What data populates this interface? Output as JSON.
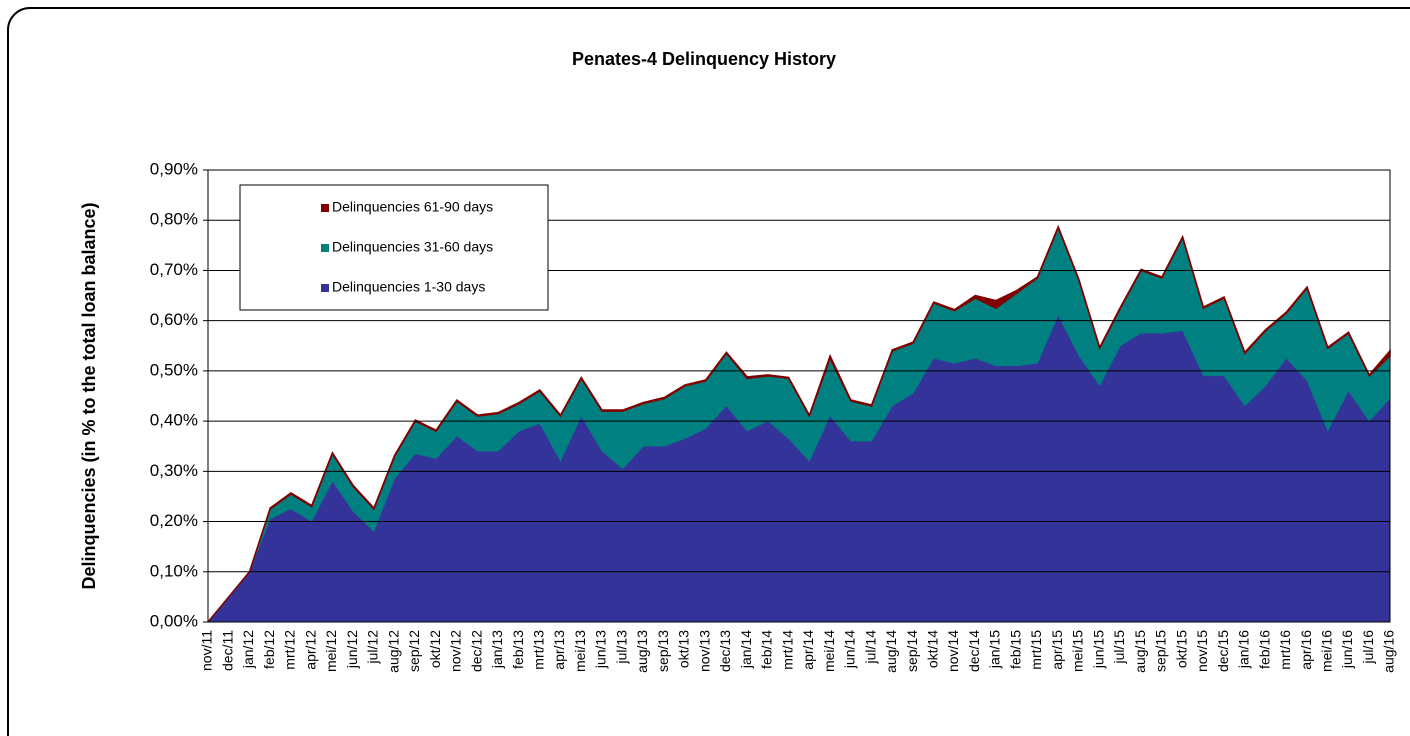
{
  "chart_data": {
    "type": "area",
    "stacked": true,
    "title": "Penates-4 Delinquency History",
    "y_label": "Delinquencies (in % to the total loan balance)",
    "categories": [
      "nov/11",
      "dec/11",
      "jan/12",
      "feb/12",
      "mrt/12",
      "apr/12",
      "mei/12",
      "jun/12",
      "jul/12",
      "aug/12",
      "sep/12",
      "okt/12",
      "nov/12",
      "dec/12",
      "jan/13",
      "feb/13",
      "mrt/13",
      "apr/13",
      "mei/13",
      "jun/13",
      "jul/13",
      "aug/13",
      "sep/13",
      "okt/13",
      "nov/13",
      "dec/13",
      "jan/14",
      "feb/14",
      "mrt/14",
      "apr/14",
      "mei/14",
      "jun/14",
      "jul/14",
      "aug/14",
      "sep/14",
      "okt/14",
      "nov/14",
      "dec/14",
      "jan/15",
      "feb/15",
      "mrt/15",
      "apr/15",
      "mei/15",
      "jun/15",
      "jul/15",
      "aug/15",
      "sep/15",
      "okt/15",
      "nov/15",
      "dec/15",
      "jan/16",
      "feb/16",
      "mrt/16",
      "apr/16",
      "mei/16",
      "jun/16",
      "jul/16",
      "aug/16"
    ],
    "series": [
      {
        "name": "Delinquencies 1-30 days",
        "color": "#333399",
        "values": [
          0,
          0.05,
          0.1,
          0.205,
          0.225,
          0.2,
          0.28,
          0.22,
          0.18,
          0.285,
          0.335,
          0.325,
          0.37,
          0.34,
          0.34,
          0.38,
          0.395,
          0.32,
          0.41,
          0.34,
          0.305,
          0.35,
          0.35,
          0.365,
          0.385,
          0.43,
          0.38,
          0.4,
          0.365,
          0.32,
          0.41,
          0.36,
          0.36,
          0.43,
          0.455,
          0.525,
          0.515,
          0.525,
          0.51,
          0.51,
          0.515,
          0.61,
          0.53,
          0.47,
          0.55,
          0.575,
          0.575,
          0.58,
          0.49,
          0.49,
          0.43,
          0.47,
          0.525,
          0.48,
          0.38,
          0.46,
          0.4,
          0.445
        ]
      },
      {
        "name": "Delinquencies 31-60 days",
        "color": "#008080",
        "values": [
          0,
          0,
          0,
          0.02,
          0.03,
          0.03,
          0.055,
          0.05,
          0.045,
          0.045,
          0.065,
          0.055,
          0.07,
          0.07,
          0.075,
          0.055,
          0.065,
          0.09,
          0.075,
          0.08,
          0.115,
          0.085,
          0.095,
          0.105,
          0.095,
          0.105,
          0.105,
          0.09,
          0.12,
          0.09,
          0.115,
          0.08,
          0.07,
          0.11,
          0.1,
          0.11,
          0.105,
          0.12,
          0.115,
          0.145,
          0.17,
          0.175,
          0.15,
          0.075,
          0.075,
          0.125,
          0.11,
          0.185,
          0.135,
          0.155,
          0.105,
          0.11,
          0.09,
          0.185,
          0.165,
          0.115,
          0.09,
          0.085
        ]
      },
      {
        "name": "Delinquencies 61-90 days",
        "color": "#800000",
        "values": [
          0,
          0,
          0,
          0.002,
          0.002,
          0.002,
          0.002,
          0.002,
          0.002,
          0.002,
          0.002,
          0.002,
          0.002,
          0.002,
          0.002,
          0.002,
          0.002,
          0.002,
          0.002,
          0.002,
          0.002,
          0.002,
          0.002,
          0.002,
          0.002,
          0.002,
          0.003,
          0.002,
          0.002,
          0.002,
          0.005,
          0.002,
          0.002,
          0.002,
          0.002,
          0.002,
          0.002,
          0.005,
          0.015,
          0.005,
          0.002,
          0.002,
          0.002,
          0.002,
          0.002,
          0.002,
          0.002,
          0.002,
          0.002,
          0.002,
          0.002,
          0.002,
          0.002,
          0.002,
          0.002,
          0.002,
          0.002,
          0.01
        ]
      }
    ],
    "ylim": [
      0,
      0.9
    ],
    "yticks": [
      {
        "value": 0,
        "label": "0,00%"
      },
      {
        "value": 0.1,
        "label": "0,10%"
      },
      {
        "value": 0.2,
        "label": "0,20%"
      },
      {
        "value": 0.3,
        "label": "0,30%"
      },
      {
        "value": 0.4,
        "label": "0,40%"
      },
      {
        "value": 0.5,
        "label": "0,50%"
      },
      {
        "value": 0.6,
        "label": "0,60%"
      },
      {
        "value": 0.7,
        "label": "0,70%"
      },
      {
        "value": 0.8,
        "label": "0,80%"
      },
      {
        "value": 0.9,
        "label": "0,90%"
      }
    ],
    "grid": true,
    "legend": "upper left"
  }
}
